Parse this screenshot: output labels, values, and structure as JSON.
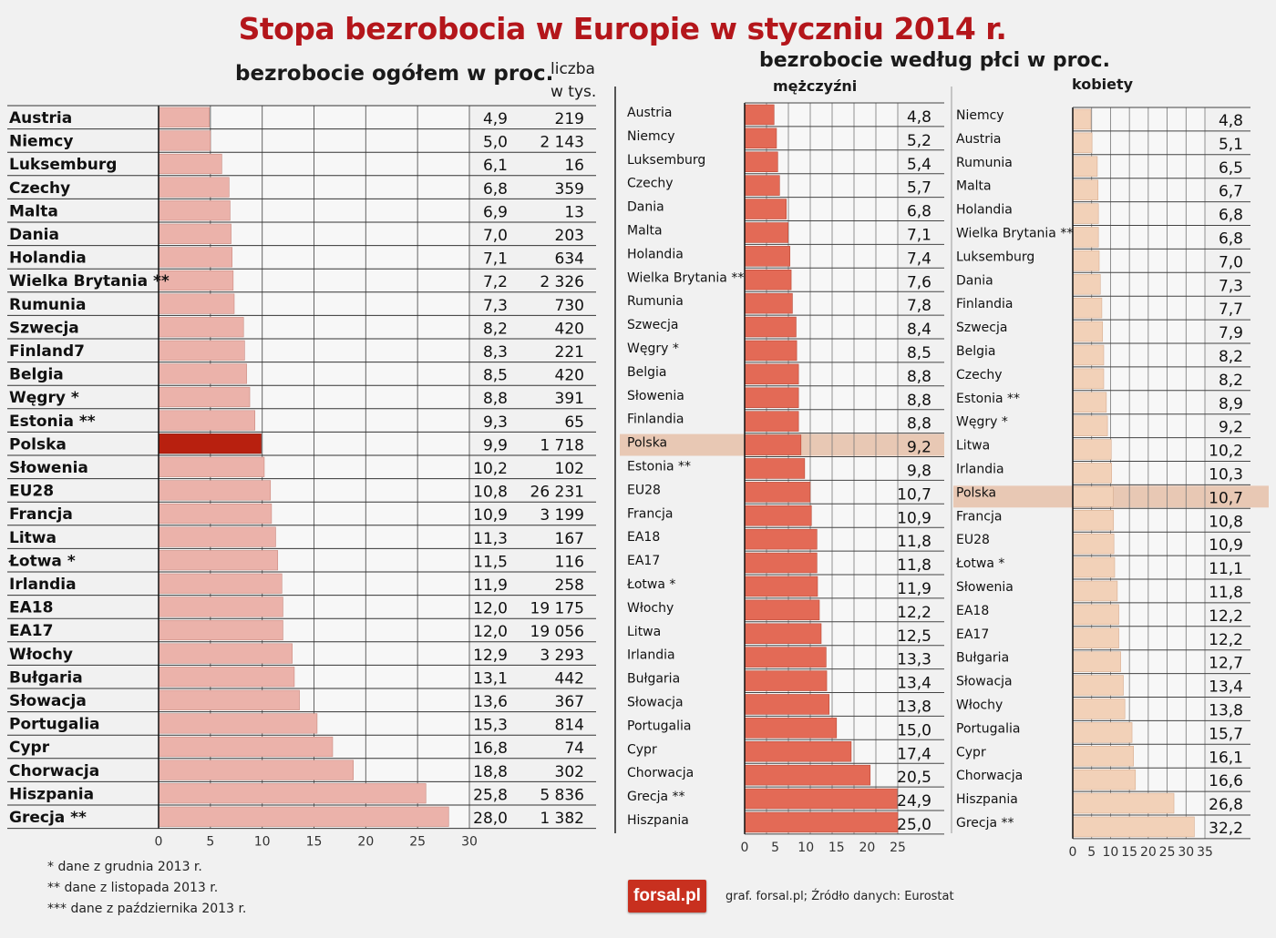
{
  "title": "Stopa bezrobocia w Europie w styczniu 2014 r.",
  "colors": {
    "title": "#b4161b",
    "bar_total": "#ebb2aa",
    "bar_poland": "#b8200f",
    "bar_men": "#e36a56",
    "bar_women": "#f2d1b8",
    "highlight": "#e8c8b4"
  },
  "footnotes": {
    "f1": "* dane z grudnia 2013 r.",
    "f2": "** dane z listopada 2013 r.",
    "f3": "*** dane z października 2013 r."
  },
  "logo": "forsal.pl",
  "source": "graf. forsal.pl;  Źródło danych: Eurostat",
  "chart_data": [
    {
      "type": "bar",
      "title": "bezrobocie ogółem w proc.",
      "count_header": "liczba\nw tys.",
      "categories": [
        "Austria",
        "Niemcy",
        "Luksemburg",
        "Czechy",
        "Malta",
        "Dania",
        "Holandia",
        "Wielka Brytania **",
        "Rumunia",
        "Szwecja",
        "Finland7",
        "Belgia",
        "Węgry *",
        "Estonia **",
        "Polska",
        "Słowenia",
        "EU28",
        "Francja",
        "Litwa",
        "Łotwa *",
        "Irlandia",
        "EA18",
        "EA17",
        "Włochy",
        "Bułgaria",
        "Słowacja",
        "Portugalia",
        "Cypr",
        "Chorwacja",
        "Hiszpania",
        "Grecja **"
      ],
      "values": [
        4.9,
        5.0,
        6.1,
        6.8,
        6.9,
        7.0,
        7.1,
        7.2,
        7.3,
        8.2,
        8.3,
        8.5,
        8.8,
        9.3,
        9.9,
        10.2,
        10.8,
        10.9,
        11.3,
        11.5,
        11.9,
        12.0,
        12.0,
        12.9,
        13.1,
        13.6,
        15.3,
        16.8,
        18.8,
        25.8,
        28.0
      ],
      "value_labels": [
        "4,9",
        "5,0",
        "6,1",
        "6,8",
        "6,9",
        "7,0",
        "7,1",
        "7,2",
        "7,3",
        "8,2",
        "8,3",
        "8,5",
        "8,8",
        "9,3",
        "9,9",
        "10,2",
        "10,8",
        "10,9",
        "11,3",
        "11,5",
        "11,9",
        "12,0",
        "12,0",
        "12,9",
        "13,1",
        "13,6",
        "15,3",
        "16,8",
        "18,8",
        "25,8",
        "28,0"
      ],
      "counts": [
        "219",
        "2 143",
        "16",
        "359",
        "13",
        "203",
        "634",
        "2 326",
        "730",
        "420",
        "221",
        "420",
        "391",
        "65",
        "1 718",
        "102",
        "26 231",
        "3 199",
        "167",
        "116",
        "258",
        "19 175",
        "19 056",
        "3 293",
        "442",
        "367",
        "814",
        "74",
        "302",
        "5 836",
        "1 382"
      ],
      "xticks": [
        "0",
        "5",
        "10",
        "15",
        "20",
        "25",
        "30"
      ],
      "xlim": [
        0,
        30
      ],
      "highlight": "Polska"
    },
    {
      "type": "bar",
      "title": "mężczyźni",
      "categories": [
        "Austria",
        "Niemcy",
        "Luksemburg",
        "Czechy",
        "Dania",
        "Malta",
        "Holandia",
        "Wielka Brytania **",
        "Rumunia",
        "Szwecja",
        "Węgry *",
        "Belgia",
        "Słowenia",
        "Finlandia",
        "Polska",
        "Estonia **",
        "EU28",
        "Francja",
        "EA18",
        "EA17",
        "Łotwa *",
        "Włochy",
        "Litwa",
        "Irlandia",
        "Bułgaria",
        "Słowacja",
        "Portugalia",
        "Cypr",
        "Chorwacja",
        "Grecja **",
        "Hiszpania"
      ],
      "values": [
        4.8,
        5.2,
        5.4,
        5.7,
        6.8,
        7.1,
        7.4,
        7.6,
        7.8,
        8.4,
        8.5,
        8.8,
        8.8,
        8.8,
        9.2,
        9.8,
        10.7,
        10.9,
        11.8,
        11.8,
        11.9,
        12.2,
        12.5,
        13.3,
        13.4,
        13.8,
        15.0,
        17.4,
        20.5,
        24.9,
        25.0
      ],
      "value_labels": [
        "4,8",
        "5,2",
        "5,4",
        "5,7",
        "6,8",
        "7,1",
        "7,4",
        "7,6",
        "7,8",
        "8,4",
        "8,5",
        "8,8",
        "8,8",
        "8,8",
        "9,2",
        "9,8",
        "10,7",
        "10,9",
        "11,8",
        "11,8",
        "11,9",
        "12,2",
        "12,5",
        "13,3",
        "13,4",
        "13,8",
        "15,0",
        "17,4",
        "20,5",
        "24,9",
        "25,0"
      ],
      "xticks": [
        "0",
        "5",
        "10",
        "15",
        "20",
        "25"
      ],
      "xlim": [
        0,
        25
      ],
      "highlight": "Polska"
    },
    {
      "type": "bar",
      "title": "kobiety",
      "categories": [
        "Niemcy",
        "Austria",
        "Rumunia",
        "Malta",
        "Holandia",
        "Wielka Brytania **",
        "Luksemburg",
        "Dania",
        "Finlandia",
        "Szwecja",
        "Belgia",
        "Czechy",
        "Estonia **",
        "Węgry *",
        "Litwa",
        "Irlandia",
        "Polska",
        "Francja",
        "EU28",
        "Łotwa *",
        "Słowenia",
        "EA18",
        "EA17",
        "Bułgaria",
        "Słowacja",
        "Włochy",
        "Portugalia",
        "Cypr",
        "Chorwacja",
        "Hiszpania",
        "Grecja **"
      ],
      "values": [
        4.8,
        5.1,
        6.5,
        6.7,
        6.8,
        6.8,
        7.0,
        7.3,
        7.7,
        7.9,
        8.2,
        8.2,
        8.9,
        9.2,
        10.2,
        10.3,
        10.7,
        10.8,
        10.9,
        11.1,
        11.8,
        12.2,
        12.2,
        12.7,
        13.4,
        13.8,
        15.7,
        16.1,
        16.6,
        26.8,
        32.2
      ],
      "value_labels": [
        "4,8",
        "5,1",
        "6,5",
        "6,7",
        "6,8",
        "6,8",
        "7,0",
        "7,3",
        "7,7",
        "7,9",
        "8,2",
        "8,2",
        "8,9",
        "9,2",
        "10,2",
        "10,3",
        "10,7",
        "10,8",
        "10,9",
        "11,1",
        "11,8",
        "12,2",
        "12,2",
        "12,7",
        "13,4",
        "13,8",
        "15,7",
        "16,1",
        "16,6",
        "26,8",
        "32,2"
      ],
      "xticks": [
        "0",
        "5",
        "10",
        "15",
        "20",
        "25",
        "30",
        "35"
      ],
      "xlim": [
        0,
        35
      ],
      "highlight": "Polska"
    }
  ]
}
